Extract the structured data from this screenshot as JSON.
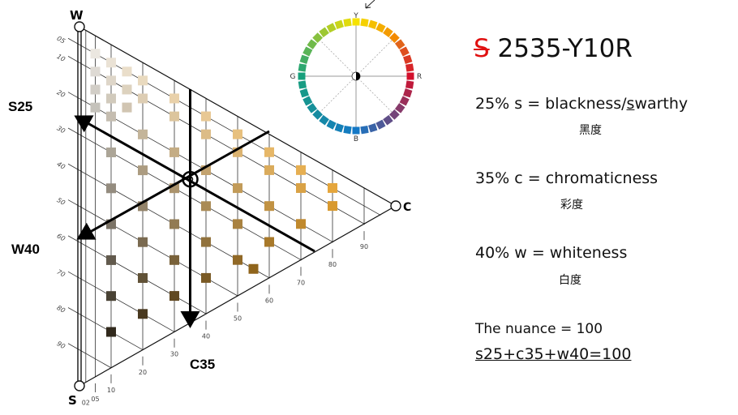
{
  "title": {
    "prefix": "S",
    "code": "2535-Y10R",
    "prefix_color": "#e01010"
  },
  "definitions": [
    {
      "pre": "25% s = blackness/",
      "ul": "s",
      "post": "warthy",
      "cjk": "黑度"
    },
    {
      "pre": "35% c = chromaticness",
      "ul": "",
      "post": "",
      "cjk": "彩度"
    },
    {
      "pre": "40% w = whiteness",
      "ul": "",
      "post": "",
      "cjk": "白度"
    }
  ],
  "nuance_text": "The nuance = 100",
  "formula": "s25+c35+w40=100",
  "triangle": {
    "vertex_labels": {
      "w": "W",
      "s": "S",
      "c": "C"
    },
    "arrow_labels": {
      "s": "S25",
      "w": "W40",
      "c": "C35"
    },
    "left_ticks": [
      "05",
      "10",
      "20",
      "30",
      "40",
      "50",
      "60",
      "70",
      "80",
      "90"
    ],
    "bottom_ticks": [
      "02",
      "05",
      "10",
      "20",
      "30",
      "40",
      "50",
      "60",
      "70",
      "80",
      "90"
    ],
    "target": {
      "s": 25,
      "c": 35,
      "w": 40
    },
    "chroma_color": "#f7a61e",
    "samples": [
      [
        5,
        5
      ],
      [
        5,
        10
      ],
      [
        10,
        5
      ],
      [
        10,
        10
      ],
      [
        5,
        15
      ],
      [
        5,
        20
      ],
      [
        15,
        5
      ],
      [
        15,
        10
      ],
      [
        10,
        15
      ],
      [
        10,
        20
      ],
      [
        20,
        5
      ],
      [
        20,
        10
      ],
      [
        15,
        15
      ],
      [
        5,
        30
      ],
      [
        10,
        30
      ],
      [
        5,
        40
      ],
      [
        20,
        20
      ],
      [
        10,
        40
      ],
      [
        5,
        50
      ],
      [
        30,
        10
      ],
      [
        20,
        30
      ],
      [
        10,
        50
      ],
      [
        5,
        60
      ],
      [
        30,
        20
      ],
      [
        20,
        40
      ],
      [
        10,
        60
      ],
      [
        5,
        70
      ],
      [
        40,
        10
      ],
      [
        30,
        30
      ],
      [
        20,
        50
      ],
      [
        10,
        70
      ],
      [
        5,
        80
      ],
      [
        40,
        20
      ],
      [
        30,
        40
      ],
      [
        20,
        60
      ],
      [
        10,
        80
      ],
      [
        50,
        10
      ],
      [
        40,
        30
      ],
      [
        30,
        50
      ],
      [
        20,
        70
      ],
      [
        50,
        20
      ],
      [
        40,
        40
      ],
      [
        30,
        60
      ],
      [
        60,
        10
      ],
      [
        50,
        30
      ],
      [
        40,
        50
      ],
      [
        40,
        55
      ],
      [
        60,
        20
      ],
      [
        50,
        40
      ],
      [
        70,
        10
      ],
      [
        60,
        30
      ],
      [
        70,
        20
      ],
      [
        80,
        10
      ]
    ]
  },
  "hue_circle": {
    "labels": {
      "top": "Y",
      "right": "R",
      "bottom": "B",
      "left": "G"
    },
    "anchor_colors": {
      "Y": "#f6e200",
      "R": "#d3102c",
      "B": "#1478c6",
      "G": "#17a07c"
    }
  }
}
